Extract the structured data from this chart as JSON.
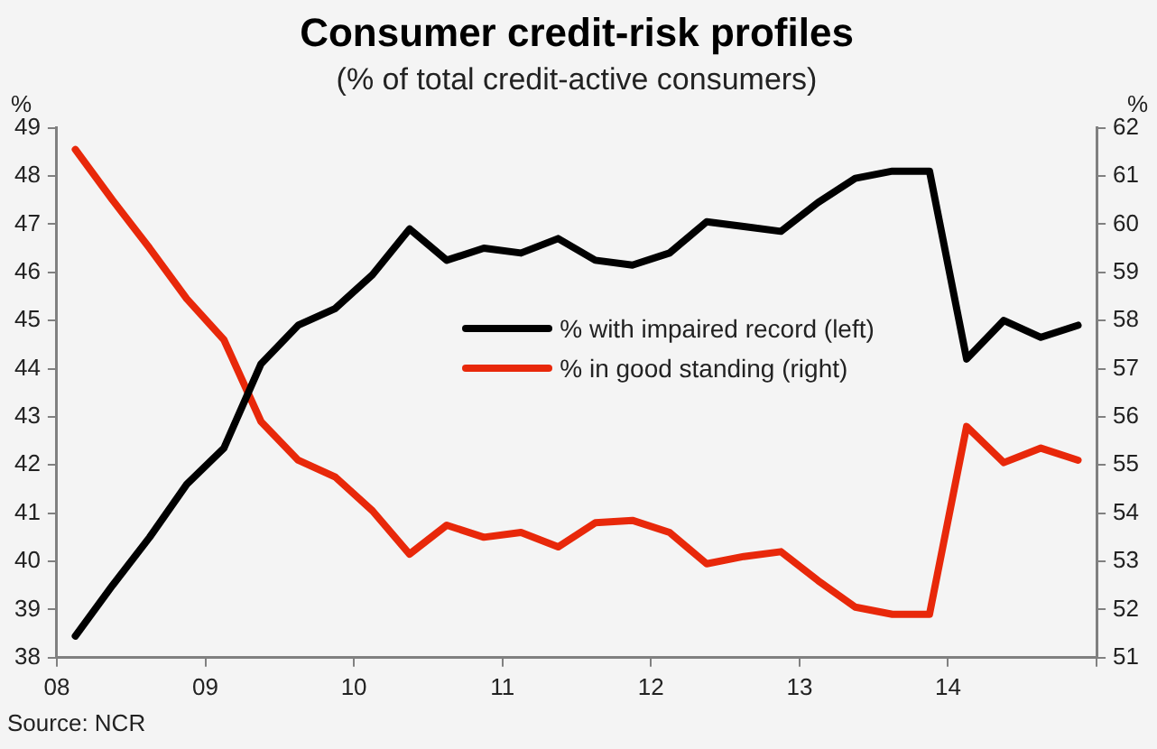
{
  "chart_data": {
    "type": "line",
    "title": "Consumer credit-risk profiles",
    "subtitle": "(% of total credit-active consumers)",
    "ylabel": "%",
    "y2label": "%",
    "x": [
      8.125,
      8.375,
      8.625,
      8.875,
      9.125,
      9.375,
      9.625,
      9.875,
      10.125,
      10.375,
      10.625,
      10.875,
      11.125,
      11.375,
      11.625,
      11.875,
      12.125,
      12.375,
      12.625,
      12.875,
      13.125,
      13.375,
      13.625,
      13.875,
      14.125,
      14.375,
      14.625,
      14.875
    ],
    "series": [
      {
        "name": "% with impaired record (left)",
        "color": "#000000",
        "values": [
          38.45,
          39.5,
          40.5,
          41.6,
          42.35,
          44.1,
          44.9,
          45.25,
          45.95,
          46.9,
          46.25,
          46.5,
          46.4,
          46.7,
          46.25,
          46.15,
          46.4,
          47.05,
          46.95,
          46.85,
          47.45,
          47.95,
          48.1,
          48.1,
          44.2,
          45.0,
          44.65,
          44.9
        ]
      },
      {
        "name": "% in good standing (right)",
        "color": "#e8280a",
        "axis": "y2",
        "values": [
          61.55,
          60.5,
          59.5,
          58.45,
          57.6,
          55.9,
          55.1,
          54.75,
          54.05,
          53.15,
          53.75,
          53.5,
          53.6,
          53.3,
          53.8,
          53.85,
          53.6,
          52.95,
          53.1,
          53.2,
          52.6,
          52.05,
          51.9,
          51.9,
          55.8,
          55.05,
          55.35,
          55.1
        ]
      }
    ],
    "xlim": [
      8,
      15
    ],
    "xticks": [
      {
        "value": 8,
        "label": "08"
      },
      {
        "value": 9,
        "label": "09"
      },
      {
        "value": 10,
        "label": "10"
      },
      {
        "value": 11,
        "label": "11"
      },
      {
        "value": 12,
        "label": "12"
      },
      {
        "value": 13,
        "label": "13"
      },
      {
        "value": 14,
        "label": "14"
      },
      {
        "value": 15,
        "label": null
      }
    ],
    "ylim": [
      38,
      49
    ],
    "yticks": [
      38,
      39,
      40,
      41,
      42,
      43,
      44,
      45,
      46,
      47,
      48,
      49
    ],
    "y2lim": [
      51,
      62
    ],
    "y2ticks": [
      51,
      52,
      53,
      54,
      55,
      56,
      57,
      58,
      59,
      60,
      61,
      62
    ],
    "grid": false,
    "legend": "center",
    "marker": "none",
    "line_style": "solid",
    "annotations": [
      "Source: NCR"
    ]
  }
}
